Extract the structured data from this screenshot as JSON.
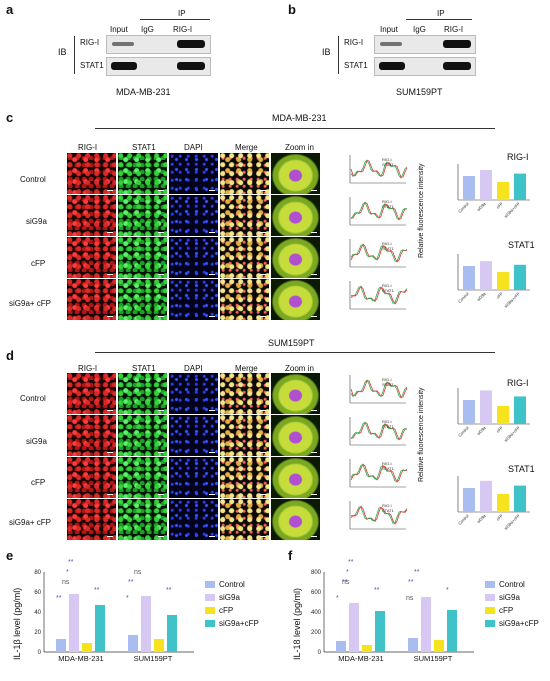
{
  "panels": {
    "a": {
      "letter": "a",
      "ip_label": "IP",
      "ib_label": "IB",
      "lanes": [
        "Input",
        "IgG",
        "RIG-I"
      ],
      "rows": [
        "RIG-I",
        "STAT1"
      ],
      "cell_line": "MDA-MB-231"
    },
    "b": {
      "letter": "b",
      "ip_label": "IP",
      "ib_label": "IB",
      "lanes": [
        "Input",
        "IgG",
        "RIG-I"
      ],
      "rows": [
        "RIG-I",
        "STAT1"
      ],
      "cell_line": "SUM159PT"
    },
    "c": {
      "letter": "c",
      "title": "MDA-MB-231",
      "columns": [
        "RIG-I",
        "STAT1",
        "DAPI",
        "Merge",
        "Zoom in"
      ],
      "rows": [
        "Control",
        "siG9a",
        "cFP",
        "siG9a+ cFP"
      ],
      "profile_legend": [
        "RIG-I",
        "STAT1"
      ],
      "bar_titles": [
        "RIG-I",
        "STAT1"
      ],
      "ylabel": "Relative fluorescence intensity",
      "xticks": [
        "Control",
        "siG9a",
        "cFP",
        "siG9a+cFP"
      ]
    },
    "d": {
      "letter": "d",
      "title": "SUM159PT",
      "columns": [
        "RIG-I",
        "STAT1",
        "DAPI",
        "Merge",
        "Zoom in"
      ],
      "rows": [
        "Control",
        "siG9a",
        "cFP",
        "siG9a+ cFP"
      ],
      "profile_legend": [
        "RIG-I",
        "STAT1"
      ],
      "bar_titles": [
        "RIG-I",
        "STAT1"
      ],
      "ylabel": "Relative fluorescence intensity",
      "xticks": [
        "Control",
        "siG9a",
        "cFP",
        "siG9a+cFP"
      ]
    },
    "e": {
      "letter": "e",
      "ylabel": "IL-1β level (pg/ml)",
      "yticks": [
        "0",
        "20",
        "40",
        "60",
        "80"
      ],
      "groups": [
        "MDA-MB-231",
        "SUM159PT"
      ],
      "legend": [
        "Control",
        "siG9a",
        "cFP",
        "siG9a+cFP"
      ],
      "sig": [
        "ns",
        "*",
        "**",
        "**",
        "**",
        "ns",
        "*",
        "**",
        "**"
      ]
    },
    "f": {
      "letter": "f",
      "ylabel": "IL-18 level (pg/ml)",
      "yticks": [
        "0",
        "200",
        "400",
        "600",
        "800"
      ],
      "groups": [
        "MDA-MB-231",
        "SUM159PT"
      ],
      "legend": [
        "Control",
        "siG9a",
        "cFP",
        "siG9a+cFP"
      ],
      "sig": [
        "ns",
        "*",
        "*",
        "**",
        "**",
        "**",
        "ns",
        "*",
        "**",
        "**"
      ]
    }
  },
  "colors": {
    "control": "#a9bdf0",
    "siG9a": "#d6c8f3",
    "cFP": "#f6e31d",
    "combo": "#3fc3c8"
  },
  "chart_data": [
    {
      "type": "bar",
      "title": "RIG-I",
      "ylabel": "Relative fluorescence intensity",
      "categories": [
        "Control",
        "siG9a",
        "cFP",
        "siG9a+cFP"
      ],
      "values": [
        1.0,
        1.25,
        0.75,
        1.1
      ],
      "ylim": [
        0,
        1.5
      ]
    },
    {
      "type": "bar",
      "title": "STAT1",
      "ylabel": "Relative fluorescence intensity",
      "categories": [
        "Control",
        "siG9a",
        "cFP",
        "siG9a+cFP"
      ],
      "values": [
        1.0,
        1.2,
        0.75,
        1.05
      ],
      "ylim": [
        0,
        1.5
      ]
    },
    {
      "type": "bar",
      "title": "RIG-I",
      "ylabel": "Relative fluorescence intensity",
      "categories": [
        "Control",
        "siG9a",
        "cFP",
        "siG9a+cFP"
      ],
      "values": [
        1.0,
        1.4,
        0.75,
        1.15
      ],
      "ylim": [
        0,
        1.5
      ]
    },
    {
      "type": "bar",
      "title": "STAT1",
      "ylabel": "Relative fluorescence intensity",
      "categories": [
        "Control",
        "siG9a",
        "cFP",
        "siG9a+cFP"
      ],
      "values": [
        1.0,
        1.3,
        0.75,
        1.1
      ],
      "ylim": [
        0,
        1.5
      ]
    },
    {
      "type": "bar",
      "ylabel": "IL-1β level (pg/ml)",
      "categories": [
        "MDA-MB-231",
        "SUM159PT"
      ],
      "series": [
        {
          "name": "Control",
          "values": [
            13,
            17
          ]
        },
        {
          "name": "siG9a",
          "values": [
            58,
            56
          ]
        },
        {
          "name": "cFP",
          "values": [
            9,
            13
          ]
        },
        {
          "name": "siG9a+cFP",
          "values": [
            47,
            37
          ]
        }
      ],
      "ylim": [
        0,
        80
      ]
    },
    {
      "type": "bar",
      "ylabel": "IL-18 level (pg/ml)",
      "categories": [
        "MDA-MB-231",
        "SUM159PT"
      ],
      "series": [
        {
          "name": "Control",
          "values": [
            110,
            140
          ]
        },
        {
          "name": "siG9a",
          "values": [
            490,
            550
          ]
        },
        {
          "name": "cFP",
          "values": [
            70,
            120
          ]
        },
        {
          "name": "siG9a+cFP",
          "values": [
            410,
            420
          ]
        }
      ],
      "ylim": [
        0,
        800
      ]
    }
  ]
}
